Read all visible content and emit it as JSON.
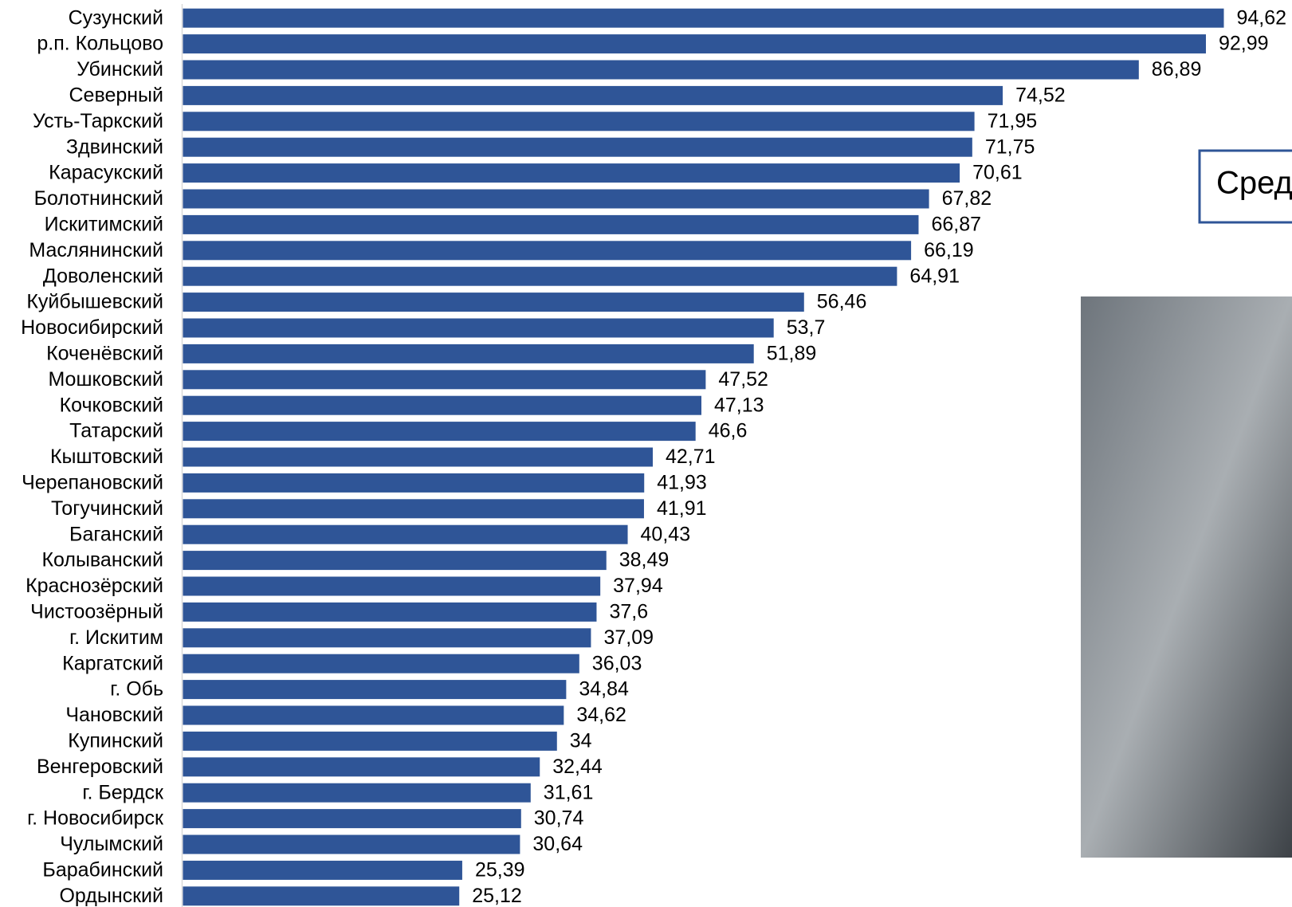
{
  "chart_data": {
    "type": "bar",
    "orientation": "horizontal",
    "color": "#2f5597",
    "annotation": "Сред",
    "categories": [
      "Сузунский",
      "р.п. Кольцово",
      "Убинский",
      "Северный",
      "Усть-Таркский",
      "Здвинский",
      "Карасукский",
      "Болотнинский",
      "Искитимский",
      "Маслянинский",
      "Доволенский",
      "Куйбышевский",
      "Новосибирский",
      "Коченёвский",
      "Мошковский",
      "Кочковский",
      "Татарский",
      "Кыштовский",
      "Черепановский",
      "Тогучинский",
      "Баганский",
      "Колыванский",
      "Краснозёрский",
      "Чистоозёрный",
      "г. Искитим",
      "Каргатский",
      "г. Обь",
      "Чановский",
      "Купинский",
      "Венгеровский",
      "г. Бердск",
      "г. Новосибирск",
      "Чулымский",
      "Барабинский",
      "Ордынский"
    ],
    "values": [
      94.62,
      92.99,
      86.89,
      74.52,
      71.95,
      71.75,
      70.61,
      67.82,
      66.87,
      66.19,
      64.91,
      56.46,
      53.7,
      51.89,
      47.52,
      47.13,
      46.6,
      42.71,
      41.93,
      41.91,
      40.43,
      38.49,
      37.94,
      37.6,
      37.09,
      36.03,
      34.84,
      34.62,
      34,
      32.44,
      31.61,
      30.74,
      30.64,
      25.39,
      25.12
    ],
    "value_labels": [
      "94,62",
      "92,99",
      "86,89",
      "74,52",
      "71,95",
      "71,75",
      "70,61",
      "67,82",
      "66,87",
      "66,19",
      "64,91",
      "56,46",
      "53,7",
      "51,89",
      "47,52",
      "47,13",
      "46,6",
      "42,71",
      "41,93",
      "41,91",
      "40,43",
      "38,49",
      "37,94",
      "37,6",
      "37,09",
      "36,03",
      "34,84",
      "34,62",
      "34",
      "32,44",
      "31,61",
      "30,74",
      "30,64",
      "25,39",
      "25,12"
    ]
  }
}
